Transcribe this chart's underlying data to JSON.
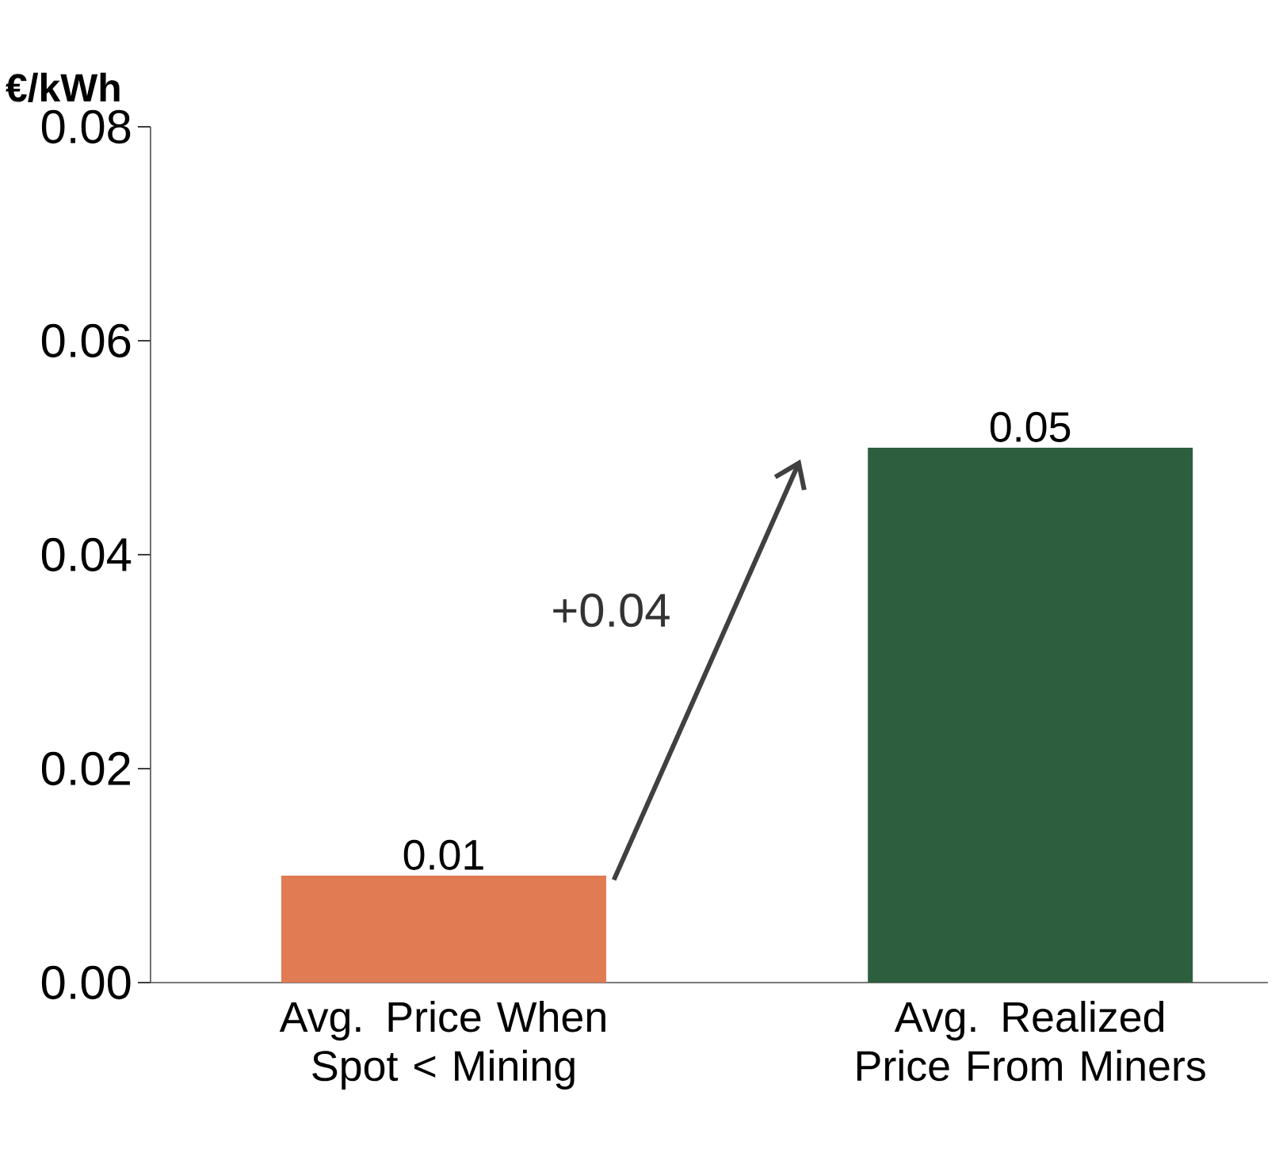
{
  "chart_data": {
    "type": "bar",
    "ylabel": "€/kWh",
    "categories": [
      "Avg. Price When Spot < Mining",
      "Avg. Realized Price From Miners"
    ],
    "values": [
      0.01,
      0.05
    ],
    "colors": [
      "#e07b54",
      "#2d5e3e"
    ],
    "ylim": [
      0,
      0.08
    ],
    "yticks": [
      {
        "value": 0,
        "label": "0.00"
      },
      {
        "value": 0.02,
        "label": "0.02"
      },
      {
        "value": 0.04,
        "label": "0.04"
      },
      {
        "value": 0.06,
        "label": "0.06"
      },
      {
        "value": 0.08,
        "label": "0.08"
      }
    ],
    "data_labels": true,
    "annotations": [
      "+0.04"
    ]
  }
}
